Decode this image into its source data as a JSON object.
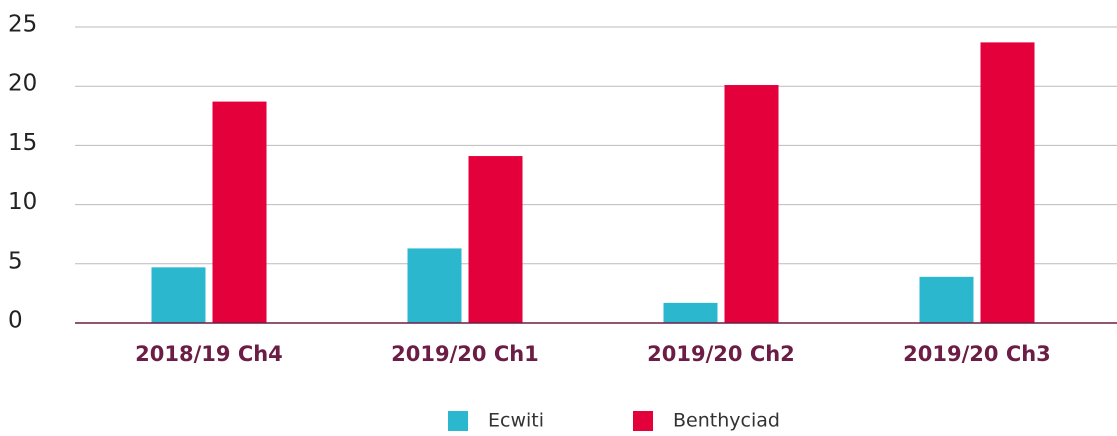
{
  "chart_data": {
    "type": "bar",
    "categories": [
      "2018/19 Ch4",
      "2019/20 Ch1",
      "2019/20 Ch2",
      "2019/20 Ch3"
    ],
    "series": [
      {
        "name": "Ecwiti",
        "color": "#2bb8cf",
        "values": [
          4.7,
          6.3,
          1.7,
          3.9
        ]
      },
      {
        "name": "Benthyciad",
        "color": "#e4003b",
        "values": [
          18.7,
          14.1,
          20.1,
          23.7
        ]
      }
    ],
    "ylim": [
      0,
      25
    ],
    "yticks": [
      0,
      5,
      10,
      15,
      20,
      25
    ],
    "grid": true
  }
}
